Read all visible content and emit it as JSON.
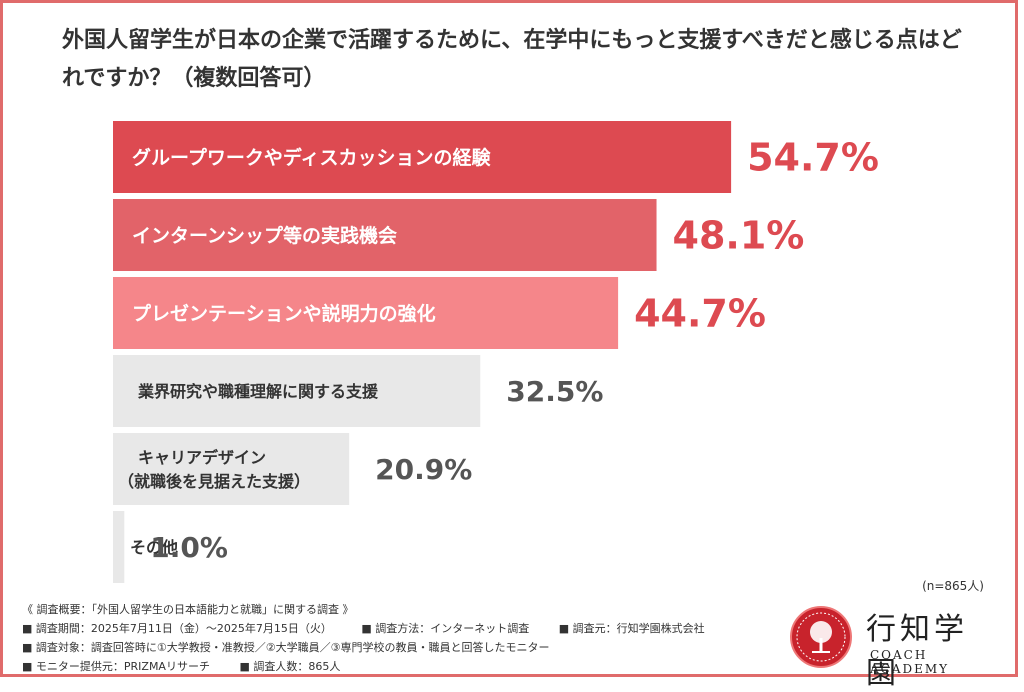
{
  "title": "外国人留学生が日本の企業で活躍するために、在学中にもっと支援すべきだと感じる点はどれですか？（複数回答可）",
  "chart_data": {
    "type": "bar",
    "orientation": "horizontal",
    "unit": "%",
    "categories": [
      [
        "グループワークやディスカッションの経験"
      ],
      [
        "インターンシップ等の実践機会"
      ],
      [
        "プレゼンテーションや説明力の強化"
      ],
      [
        "業界研究や職種理解に関する支援"
      ],
      [
        "キャリアデザイン",
        "（就職後を見据えた支援）"
      ],
      [
        "その他"
      ]
    ],
    "values": [
      54.7,
      48.1,
      44.7,
      32.5,
      20.9,
      1.0
    ],
    "value_labels": [
      "54.7%",
      "48.1%",
      "44.7%",
      "32.5%",
      "20.9%",
      "1.0%"
    ],
    "bar_colors": [
      "#dd4a51",
      "#e26369",
      "#f5868a",
      "#e8e8e8",
      "#e8e8e8",
      "#e8e8e8"
    ],
    "label_colors": [
      "#ffffff",
      "#ffffff",
      "#ffffff",
      "#333333",
      "#333333",
      "#333333"
    ],
    "value_colors": [
      "#dd4a51",
      "#dd4a51",
      "#dd4a51",
      "#555555",
      "#555555",
      "#555555"
    ],
    "xlim": [
      0,
      100
    ]
  },
  "n_note": "(n=865人)",
  "footer": {
    "summary": "《 調査概要：「外国人留学生の日本語能力と就職」に関する調査 》",
    "period": "■ 調査期間：2025年7月11日（金）〜2025年7月15日（火）",
    "method": "■ 調査方法：インターネット調査",
    "org": "■ 調査元：行知学園株式会社",
    "target": "■ 調査対象：調査回答時に①大学教授・准教授／②大学職員／③専門学校の教員・職員と回答したモニター",
    "provider": "■ モニター提供元：PRIZMAリサーチ",
    "count": "■ 調査人数：865人"
  },
  "logo": {
    "name": "行知学園",
    "sub": "COACH ACADEMY"
  }
}
